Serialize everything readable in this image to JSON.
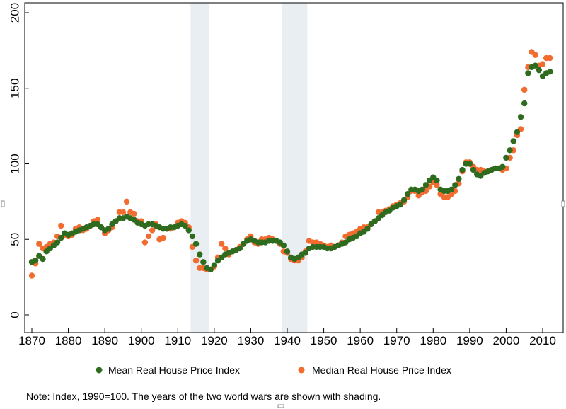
{
  "chart_data": {
    "type": "scatter",
    "title": "",
    "xlabel": "",
    "ylabel": "",
    "xlim": [
      1868,
      2013
    ],
    "ylim": [
      0,
      200
    ],
    "x_ticks": [
      1870,
      1880,
      1890,
      1900,
      1910,
      1920,
      1930,
      1940,
      1950,
      1960,
      1970,
      1980,
      1990,
      2000,
      2010
    ],
    "y_ticks": [
      0,
      50,
      100,
      150,
      200
    ],
    "grid": false,
    "legend_position": "bottom",
    "shaded_periods": [
      [
        1914,
        1918
      ],
      [
        1939,
        1945
      ]
    ],
    "note": "Note: Index, 1990=100. The years of the two world wars are shown with shading.",
    "colors": {
      "mean": "#2e6b1f",
      "median": "#f26b2f",
      "shade": "#e8eef2"
    },
    "series": [
      {
        "name": "Mean Real House Price Index",
        "color": "#2e6b1f",
        "x": [
          1870,
          1871,
          1872,
          1873,
          1874,
          1875,
          1876,
          1877,
          1878,
          1879,
          1880,
          1881,
          1882,
          1883,
          1884,
          1885,
          1886,
          1887,
          1888,
          1889,
          1890,
          1891,
          1892,
          1893,
          1894,
          1895,
          1896,
          1897,
          1898,
          1899,
          1900,
          1901,
          1902,
          1903,
          1904,
          1905,
          1906,
          1907,
          1908,
          1909,
          1910,
          1911,
          1912,
          1913,
          1914,
          1915,
          1916,
          1917,
          1918,
          1919,
          1920,
          1921,
          1922,
          1923,
          1924,
          1925,
          1926,
          1927,
          1928,
          1929,
          1930,
          1931,
          1932,
          1933,
          1934,
          1935,
          1936,
          1937,
          1938,
          1939,
          1940,
          1941,
          1942,
          1943,
          1944,
          1945,
          1946,
          1947,
          1948,
          1949,
          1950,
          1951,
          1952,
          1953,
          1954,
          1955,
          1956,
          1957,
          1958,
          1959,
          1960,
          1961,
          1962,
          1963,
          1964,
          1965,
          1966,
          1967,
          1968,
          1969,
          1970,
          1971,
          1972,
          1973,
          1974,
          1975,
          1976,
          1977,
          1978,
          1979,
          1980,
          1981,
          1982,
          1983,
          1984,
          1985,
          1986,
          1987,
          1988,
          1989,
          1990,
          1991,
          1992,
          1993,
          1994,
          1995,
          1996,
          1997,
          1998,
          1999,
          2000,
          2001,
          2002,
          2003,
          2004,
          2005,
          2006,
          2007,
          2008,
          2009,
          2010,
          2011,
          2012
        ],
        "values": [
          35,
          36,
          39,
          37,
          42,
          44,
          46,
          48,
          51,
          54,
          53,
          54,
          55,
          56,
          57,
          58,
          59,
          60,
          60,
          58,
          56,
          57,
          60,
          62,
          64,
          64,
          65,
          64,
          63,
          61,
          60,
          59,
          60,
          60,
          59,
          58,
          57,
          57,
          58,
          58,
          59,
          60,
          59,
          56,
          52,
          47,
          40,
          35,
          31,
          30,
          33,
          36,
          38,
          40,
          41,
          42,
          43,
          44,
          47,
          49,
          50,
          49,
          48,
          48,
          48,
          49,
          49,
          49,
          48,
          46,
          42,
          38,
          37,
          38,
          40,
          41,
          44,
          45,
          45,
          45,
          45,
          44,
          44,
          45,
          46,
          47,
          48,
          50,
          51,
          52,
          54,
          55,
          57,
          60,
          62,
          64,
          66,
          68,
          69,
          71,
          72,
          73,
          76,
          80,
          83,
          83,
          82,
          83,
          86,
          89,
          91,
          89,
          83,
          82,
          82,
          83,
          86,
          90,
          96,
          100,
          100,
          96,
          93,
          92,
          94,
          95,
          96,
          97,
          97,
          98,
          104,
          109,
          115,
          121,
          131,
          140,
          160,
          164,
          165,
          162,
          158,
          160,
          161
        ]
      },
      {
        "name": "Median Real House Price Index",
        "color": "#f26b2f",
        "x": [
          1870,
          1871,
          1872,
          1873,
          1874,
          1875,
          1876,
          1877,
          1878,
          1879,
          1880,
          1881,
          1882,
          1883,
          1884,
          1885,
          1886,
          1887,
          1888,
          1889,
          1890,
          1891,
          1892,
          1893,
          1894,
          1895,
          1896,
          1897,
          1898,
          1899,
          1900,
          1901,
          1902,
          1903,
          1904,
          1905,
          1906,
          1907,
          1908,
          1909,
          1910,
          1911,
          1912,
          1913,
          1914,
          1915,
          1916,
          1917,
          1918,
          1919,
          1920,
          1921,
          1922,
          1923,
          1924,
          1925,
          1926,
          1927,
          1928,
          1929,
          1930,
          1931,
          1932,
          1933,
          1934,
          1935,
          1936,
          1937,
          1938,
          1939,
          1940,
          1941,
          1942,
          1943,
          1944,
          1945,
          1946,
          1947,
          1948,
          1949,
          1950,
          1951,
          1952,
          1953,
          1954,
          1955,
          1956,
          1957,
          1958,
          1959,
          1960,
          1961,
          1962,
          1963,
          1964,
          1965,
          1966,
          1967,
          1968,
          1969,
          1970,
          1971,
          1972,
          1973,
          1974,
          1975,
          1976,
          1977,
          1978,
          1979,
          1980,
          1981,
          1982,
          1983,
          1984,
          1985,
          1986,
          1987,
          1988,
          1989,
          1990,
          1991,
          1992,
          1993,
          1994,
          1995,
          1996,
          1997,
          1998,
          1999,
          2000,
          2001,
          2002,
          2003,
          2004,
          2005,
          2006,
          2007,
          2008,
          2009,
          2010,
          2011,
          2012
        ],
        "values": [
          26,
          34,
          47,
          44,
          45,
          47,
          48,
          52,
          59,
          53,
          52,
          53,
          57,
          58,
          56,
          57,
          59,
          62,
          63,
          58,
          54,
          56,
          58,
          62,
          68,
          68,
          75,
          68,
          67,
          62,
          62,
          48,
          52,
          56,
          60,
          50,
          51,
          57,
          57,
          58,
          61,
          62,
          61,
          58,
          45,
          36,
          31,
          31,
          30,
          30,
          32,
          38,
          47,
          44,
          40,
          42,
          43,
          45,
          47,
          50,
          52,
          48,
          47,
          50,
          50,
          51,
          50,
          49,
          47,
          42,
          41,
          37,
          36,
          36,
          38,
          42,
          49,
          48,
          48,
          47,
          46,
          45,
          46,
          45,
          46,
          48,
          52,
          53,
          54,
          55,
          57,
          58,
          58,
          60,
          62,
          68,
          68,
          69,
          70,
          72,
          73,
          74,
          75,
          78,
          82,
          82,
          79,
          81,
          82,
          85,
          88,
          86,
          80,
          78,
          78,
          80,
          82,
          87,
          95,
          101,
          101,
          98,
          96,
          96,
          95,
          95,
          96,
          97,
          97,
          96,
          97,
          104,
          109,
          119,
          123,
          149,
          164,
          174,
          172,
          165,
          166,
          170,
          170
        ]
      }
    ]
  }
}
